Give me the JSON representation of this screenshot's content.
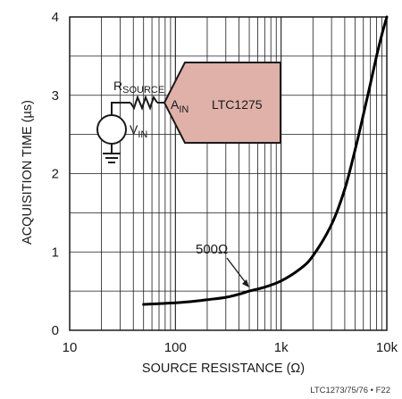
{
  "chart_data": {
    "type": "line",
    "xscale": "log",
    "xlim": [
      10,
      10000
    ],
    "ylim": [
      0,
      4
    ],
    "xlabel": "SOURCE RESISTANCE (Ω)",
    "ylabel": "ACQUISITION TIME (µs)",
    "xticks": [
      "10",
      "100",
      "1k",
      "10k"
    ],
    "yticks": [
      "0",
      "1",
      "2",
      "3",
      "4"
    ],
    "grid": true,
    "series": [
      {
        "x": [
          50,
          70,
          100,
          150,
          200,
          300,
          400,
          500,
          700,
          1000,
          1500,
          2000,
          3000,
          4000,
          5000,
          6000,
          7000,
          8000,
          9000,
          10000
        ],
        "y": [
          0.33,
          0.34,
          0.35,
          0.37,
          0.39,
          0.42,
          0.46,
          0.5,
          0.55,
          0.63,
          0.78,
          0.95,
          1.35,
          1.8,
          2.3,
          2.75,
          3.15,
          3.5,
          3.78,
          4.0
        ]
      }
    ],
    "annotation": {
      "text": "500Ω",
      "x": 500,
      "y": 0.5
    },
    "inset": {
      "resistor_label_main": "R",
      "resistor_label_sub": "SOURCE",
      "source_label_main": "V",
      "source_label_sub": "IN",
      "input_label_main": "A",
      "input_label_sub": "IN",
      "chip_label": "LTC1275",
      "chip_color": "#dfb1a9"
    },
    "figure_id": "LTC1273/75/76 • F22"
  }
}
